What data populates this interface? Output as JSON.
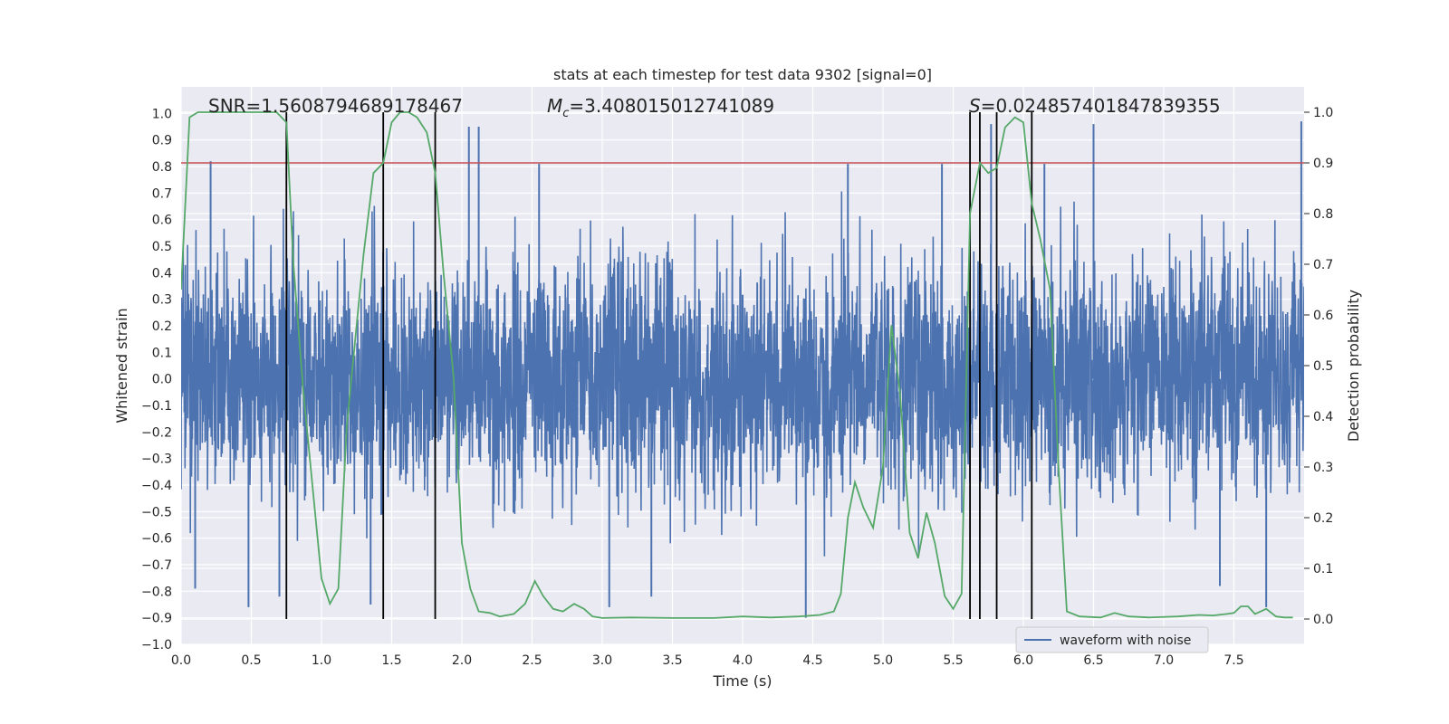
{
  "chart_data": {
    "type": "line",
    "title": "stats at each timestep for test data 9302 [signal=0]",
    "xlabel": "Time (s)",
    "ylabel_left": "Whitened strain",
    "ylabel_right": "Detection probability",
    "xlim": [
      0,
      8
    ],
    "ylim_left": [
      -1.0,
      1.1
    ],
    "ylim_right": [
      -0.05,
      1.05
    ],
    "x_ticks": [
      "0.0",
      "0.5",
      "1.0",
      "1.5",
      "2.0",
      "2.5",
      "3.0",
      "3.5",
      "4.0",
      "4.5",
      "5.0",
      "5.5",
      "6.0",
      "6.5",
      "7.0",
      "7.5"
    ],
    "y_left_ticks": [
      "-1.0",
      "-0.9",
      "-0.8",
      "-0.7",
      "-0.6",
      "-0.5",
      "-0.4",
      "-0.3",
      "-0.2",
      "-0.1",
      "0.0",
      "0.1",
      "0.2",
      "0.3",
      "0.4",
      "0.5",
      "0.6",
      "0.7",
      "0.8",
      "0.9",
      "1.0"
    ],
    "y_right_ticks": [
      "0.0",
      "0.1",
      "0.2",
      "0.3",
      "0.4",
      "0.5",
      "0.6",
      "0.7",
      "0.8",
      "0.9",
      "1.0"
    ],
    "annotations": {
      "snr": "SNR=1.5608794689178467",
      "mc_symbol": "M",
      "mc_sub": "c",
      "mc_value": "=3.408015012741089",
      "s_symbol": "S",
      "s_value": "=0.024857401847839355"
    },
    "threshold": {
      "value": 0.9,
      "axis": "right",
      "color": "#c44e52"
    },
    "vertical_lines": [
      0.75,
      1.44,
      1.81,
      5.62,
      5.69,
      5.81,
      6.06
    ],
    "legend": {
      "label": "waveform with noise",
      "placement": "lower-right"
    },
    "waveform": {
      "name": "waveform with noise",
      "color": "#4c72b0",
      "x_range": [
        0,
        8
      ],
      "core_amplitude": 0.25,
      "typical_peak_range": [
        -0.55,
        0.6
      ],
      "extreme_peaks": [
        {
          "x": 0.21,
          "y": 0.82
        },
        {
          "x": 0.1,
          "y": -0.79
        },
        {
          "x": 0.48,
          "y": -0.86
        },
        {
          "x": 0.7,
          "y": -0.82
        },
        {
          "x": 1.35,
          "y": -0.85
        },
        {
          "x": 2.05,
          "y": 0.95
        },
        {
          "x": 2.12,
          "y": 0.95
        },
        {
          "x": 2.55,
          "y": 0.81
        },
        {
          "x": 3.05,
          "y": -0.86
        },
        {
          "x": 3.35,
          "y": -0.82
        },
        {
          "x": 4.45,
          "y": -0.9
        },
        {
          "x": 4.75,
          "y": 0.81
        },
        {
          "x": 5.42,
          "y": 0.81
        },
        {
          "x": 5.77,
          "y": 0.96
        },
        {
          "x": 6.15,
          "y": 0.81
        },
        {
          "x": 6.5,
          "y": 0.96
        },
        {
          "x": 7.4,
          "y": -0.78
        },
        {
          "x": 7.73,
          "y": -0.86
        },
        {
          "x": 7.98,
          "y": 0.97
        }
      ]
    },
    "detection_probability": {
      "color": "#55a868",
      "x": [
        0,
        0.06,
        0.12,
        0.18,
        0.25,
        0.32,
        0.4,
        0.48,
        0.55,
        0.62,
        0.68,
        0.75,
        0.8,
        0.87,
        0.93,
        1.0,
        1.06,
        1.12,
        1.18,
        1.25,
        1.3,
        1.37,
        1.44,
        1.5,
        1.56,
        1.62,
        1.68,
        1.75,
        1.81,
        1.87,
        1.94,
        2.0,
        2.06,
        2.12,
        2.2,
        2.27,
        2.37,
        2.45,
        2.52,
        2.58,
        2.65,
        2.72,
        2.8,
        2.87,
        2.93,
        3.0,
        3.2,
        3.5,
        3.8,
        4.0,
        4.2,
        4.4,
        4.55,
        4.65,
        4.7,
        4.75,
        4.8,
        4.86,
        4.93,
        5.0,
        5.06,
        5.12,
        5.19,
        5.25,
        5.31,
        5.37,
        5.44,
        5.5,
        5.56,
        5.62,
        5.69,
        5.75,
        5.81,
        5.87,
        5.94,
        6.0,
        6.06,
        6.12,
        6.19,
        6.25,
        6.31,
        6.4,
        6.55,
        6.65,
        6.75,
        6.9,
        7.1,
        7.25,
        7.35,
        7.45,
        7.5,
        7.55,
        7.6,
        7.65,
        7.73,
        7.8,
        7.86,
        7.92
      ],
      "y": [
        0.65,
        0.99,
        1.0,
        1.0,
        1.0,
        1.0,
        1.0,
        1.0,
        1.0,
        1.0,
        1.0,
        0.98,
        0.7,
        0.45,
        0.28,
        0.08,
        0.03,
        0.06,
        0.38,
        0.58,
        0.72,
        0.88,
        0.9,
        0.98,
        1.0,
        1.0,
        0.99,
        0.96,
        0.88,
        0.68,
        0.48,
        0.15,
        0.06,
        0.015,
        0.012,
        0.005,
        0.01,
        0.03,
        0.075,
        0.045,
        0.02,
        0.015,
        0.03,
        0.02,
        0.005,
        0.002,
        0.003,
        0.002,
        0.002,
        0.005,
        0.003,
        0.005,
        0.008,
        0.015,
        0.05,
        0.2,
        0.27,
        0.22,
        0.18,
        0.3,
        0.58,
        0.45,
        0.17,
        0.12,
        0.21,
        0.15,
        0.045,
        0.02,
        0.05,
        0.8,
        0.9,
        0.88,
        0.89,
        0.97,
        0.99,
        0.98,
        0.82,
        0.75,
        0.65,
        0.3,
        0.015,
        0.005,
        0.003,
        0.012,
        0.005,
        0.003,
        0.005,
        0.008,
        0.007,
        0.01,
        0.012,
        0.025,
        0.025,
        0.01,
        0.02,
        0.005,
        0.003,
        0.003
      ]
    }
  }
}
